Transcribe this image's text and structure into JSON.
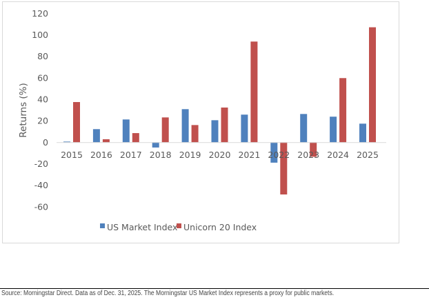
{
  "chart_data": {
    "type": "bar",
    "title": "",
    "xlabel": "",
    "ylabel": "Returns (%)",
    "ylim": [
      -60,
      120
    ],
    "yticks": [
      120,
      100,
      80,
      60,
      40,
      20,
      0,
      -20,
      -40,
      -60
    ],
    "grid": false,
    "legend_position": "bottom",
    "categories": [
      "2015",
      "2016",
      "2017",
      "2018",
      "2019",
      "2020",
      "2021",
      "2022",
      "2023",
      "2024",
      "2025"
    ],
    "series": [
      {
        "name": "US Market Index",
        "color": "#4F81BD",
        "values": [
          0.6,
          12.2,
          21.2,
          -4.9,
          30.8,
          20.5,
          25.7,
          -19.0,
          26.3,
          23.8,
          17.3
        ]
      },
      {
        "name": "Unicorn 20 Index",
        "color": "#C0504D",
        "values": [
          37.4,
          2.8,
          8.5,
          23.1,
          16.0,
          32.3,
          93.7,
          -48.6,
          -13.5,
          59.7,
          107.0
        ]
      }
    ]
  },
  "footer": {
    "source": "Source: Morningstar Direct. Data as of Dec. 31, 2025. The Morningstar US Market Index represents a proxy for public markets."
  }
}
